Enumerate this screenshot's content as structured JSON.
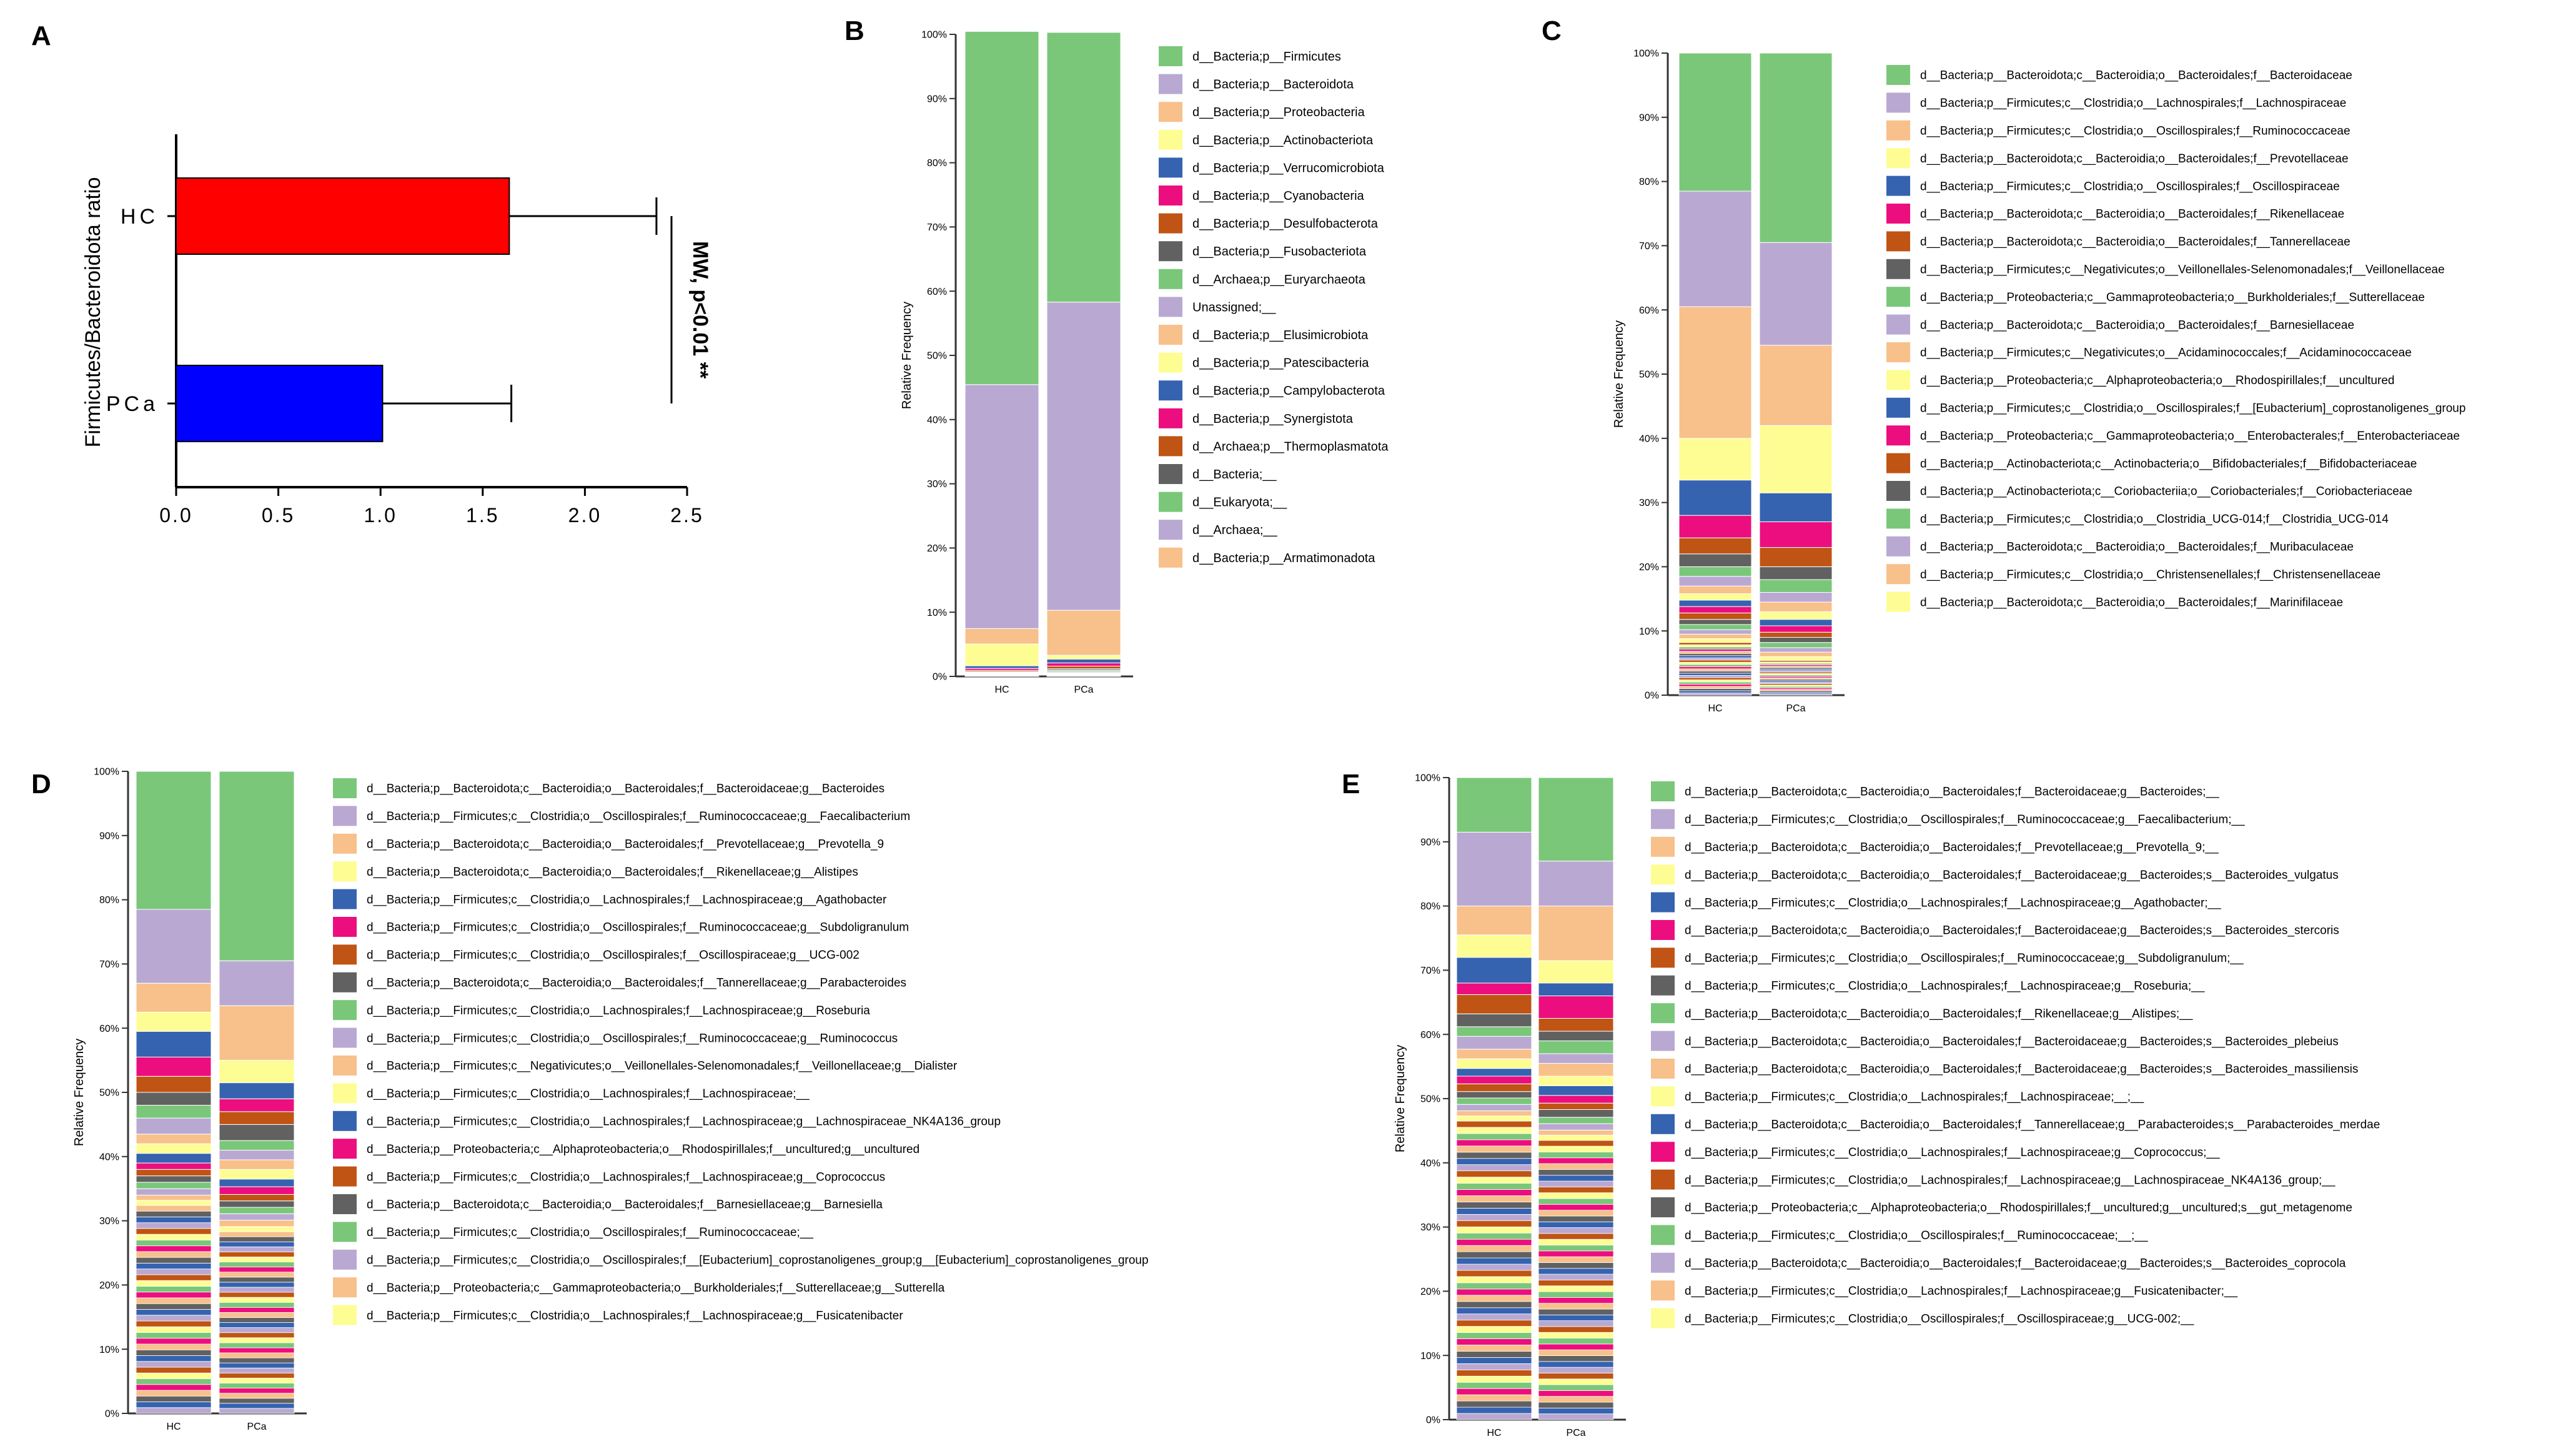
{
  "palette": [
    "#7ac77a",
    "#b9a9d2",
    "#f8c08a",
    "#fdfd94",
    "#3563b0",
    "#ec0e7e",
    "#bf5414",
    "#616161"
  ],
  "chart_data": [
    {
      "panel": "A",
      "type": "bar",
      "orientation": "horizontal",
      "ylabel": "Firmicutes/Bacteroidota ratio",
      "categories": [
        "HC",
        "PCa"
      ],
      "values": [
        1.63,
        1.01
      ],
      "errors": [
        0.72,
        0.63
      ],
      "colors": [
        "#ff0000",
        "#0000ff"
      ],
      "xlim": [
        0,
        2.5
      ],
      "xticks": [
        "0.0",
        "0.5",
        "1.0",
        "1.5",
        "2.0",
        "2.5"
      ],
      "annotation": "MW, p<0.01 **"
    },
    {
      "panel": "B",
      "type": "stacked-bar",
      "ylabel": "Relative Frequency",
      "yticks": [
        "0%",
        "10%",
        "20%",
        "30%",
        "40%",
        "50%",
        "60%",
        "70%",
        "80%",
        "90%",
        "100%"
      ],
      "categories": [
        "HC",
        "PCa"
      ],
      "series": [
        {
          "name": "d__Bacteria;p__Firmicutes",
          "values": [
            55,
            42
          ]
        },
        {
          "name": "d__Bacteria;p__Bacteroidota",
          "values": [
            38,
            48
          ]
        },
        {
          "name": "d__Bacteria;p__Proteobacteria",
          "values": [
            2.4,
            7
          ]
        },
        {
          "name": "d__Bacteria;p__Actinobacteriota",
          "values": [
            3.4,
            0.6
          ]
        },
        {
          "name": "d__Bacteria;p__Verrucomicrobiota",
          "values": [
            0.4,
            0.6
          ]
        },
        {
          "name": "d__Bacteria;p__Cyanobacteria",
          "values": [
            0.3,
            0.5
          ]
        },
        {
          "name": "d__Bacteria;p__Desulfobacterota",
          "values": [
            0.2,
            0.4
          ]
        },
        {
          "name": "d__Bacteria;p__Fusobacteriota",
          "values": [
            0.1,
            0.2
          ]
        },
        {
          "name": "d__Archaea;p__Euryarchaeota",
          "values": [
            0.1,
            0.2
          ]
        },
        {
          "name": "Unassigned;__",
          "values": [
            0.1,
            0.2
          ]
        },
        {
          "name": "d__Bacteria;p__Elusimicrobiota",
          "values": [
            0.05,
            0.1
          ]
        },
        {
          "name": "d__Bacteria;p__Patescibacteria",
          "values": [
            0.05,
            0.1
          ]
        },
        {
          "name": "d__Bacteria;p__Campylobacterota",
          "values": [
            0.05,
            0.1
          ]
        },
        {
          "name": "d__Bacteria;p__Synergistota",
          "values": [
            0.05,
            0.05
          ]
        },
        {
          "name": "d__Archaea;p__Thermoplasmatota",
          "values": [
            0.05,
            0.05
          ]
        },
        {
          "name": "d__Bacteria;__",
          "values": [
            0.05,
            0.05
          ]
        },
        {
          "name": "d__Eukaryota;__",
          "values": [
            0.05,
            0.05
          ]
        },
        {
          "name": "d__Archaea;__",
          "values": [
            0.05,
            0.05
          ]
        },
        {
          "name": "d__Bacteria;p__Armatimonadota",
          "values": [
            0.05,
            0.05
          ]
        }
      ]
    },
    {
      "panel": "C",
      "type": "stacked-bar",
      "ylabel": "Relative Frequency",
      "yticks": [
        "0%",
        "10%",
        "20%",
        "30%",
        "40%",
        "50%",
        "60%",
        "70%",
        "80%",
        "90%",
        "100%"
      ],
      "categories": [
        "HC",
        "PCa"
      ],
      "series": [
        {
          "name": "d__Bacteria;p__Bacteroidota;c__Bacteroidia;o__Bacteroidales;f__Bacteroidaceae",
          "values": [
            21.5,
            29.5
          ]
        },
        {
          "name": "d__Bacteria;p__Firmicutes;c__Clostridia;o__Lachnospirales;f__Lachnospiraceae",
          "values": [
            18,
            16
          ]
        },
        {
          "name": "d__Bacteria;p__Firmicutes;c__Clostridia;o__Oscillospirales;f__Ruminococcaceae",
          "values": [
            20.5,
            12.5
          ]
        },
        {
          "name": "d__Bacteria;p__Bacteroidota;c__Bacteroidia;o__Bacteroidales;f__Prevotellaceae",
          "values": [
            6.5,
            10.5
          ]
        },
        {
          "name": "d__Bacteria;p__Firmicutes;c__Clostridia;o__Oscillospirales;f__Oscillospiraceae",
          "values": [
            5.5,
            4.5
          ]
        },
        {
          "name": "d__Bacteria;p__Bacteroidota;c__Bacteroidia;o__Bacteroidales;f__Rikenellaceae",
          "values": [
            3.5,
            4
          ]
        },
        {
          "name": "d__Bacteria;p__Bacteroidota;c__Bacteroidia;o__Bacteroidales;f__Tannerellaceae",
          "values": [
            2.5,
            3
          ]
        },
        {
          "name": "d__Bacteria;p__Firmicutes;c__Negativicutes;o__Veillonellales-Selenomonadales;f__Veillonellaceae",
          "values": [
            2,
            2
          ]
        },
        {
          "name": "d__Bacteria;p__Proteobacteria;c__Gammaproteobacteria;o__Burkholderiales;f__Sutterellaceae",
          "values": [
            1.5,
            2
          ]
        },
        {
          "name": "d__Bacteria;p__Bacteroidota;c__Bacteroidia;o__Bacteroidales;f__Barnesiellaceae",
          "values": [
            1.5,
            1.5
          ]
        },
        {
          "name": "d__Bacteria;p__Firmicutes;c__Negativicutes;o__Acidaminococcales;f__Acidaminococcaceae",
          "values": [
            1.2,
            1.5
          ]
        },
        {
          "name": "d__Bacteria;p__Proteobacteria;c__Alphaproteobacteria;o__Rhodospirillales;f__uncultured",
          "values": [
            1,
            1.2
          ]
        },
        {
          "name": "d__Bacteria;p__Firmicutes;c__Clostridia;o__Oscillospirales;f__[Eubacterium]_coprostanoligenes_group",
          "values": [
            1,
            1
          ]
        },
        {
          "name": "d__Bacteria;p__Proteobacteria;c__Gammaproteobacteria;o__Enterobacterales;f__Enterobacteriaceae",
          "values": [
            1,
            1
          ]
        },
        {
          "name": "d__Bacteria;p__Actinobacteriota;c__Actinobacteria;o__Bifidobacteriales;f__Bifidobacteriaceae",
          "values": [
            1,
            0.8
          ]
        },
        {
          "name": "d__Bacteria;p__Actinobacteriota;c__Coriobacteriia;o__Coriobacteriales;f__Coriobacteriaceae",
          "values": [
            0.8,
            0.8
          ]
        },
        {
          "name": "d__Bacteria;p__Firmicutes;c__Clostridia;o__Clostridia_UCG-014;f__Clostridia_UCG-014",
          "values": [
            0.8,
            0.8
          ]
        },
        {
          "name": "d__Bacteria;p__Bacteroidota;c__Bacteroidia;o__Bacteroidales;f__Muribaculaceae",
          "values": [
            0.7,
            0.7
          ]
        },
        {
          "name": "d__Bacteria;p__Firmicutes;c__Clostridia;o__Christensenellales;f__Christensenellaceae",
          "values": [
            0.7,
            0.7
          ]
        },
        {
          "name": "d__Bacteria;p__Bacteroidota;c__Bacteroidia;o__Bacteroidales;f__Marinifilaceae",
          "values": [
            0.6,
            0.6
          ]
        }
      ]
    },
    {
      "panel": "D",
      "type": "stacked-bar",
      "ylabel": "Relative Frequency",
      "yticks": [
        "0%",
        "10%",
        "20%",
        "30%",
        "40%",
        "50%",
        "60%",
        "70%",
        "80%",
        "90%",
        "100%"
      ],
      "categories": [
        "HC",
        "PCa"
      ],
      "series": [
        {
          "name": "d__Bacteria;p__Bacteroidota;c__Bacteroidia;o__Bacteroidales;f__Bacteroidaceae;g__Bacteroides",
          "values": [
            21.5,
            29.5
          ]
        },
        {
          "name": "d__Bacteria;p__Firmicutes;c__Clostridia;o__Oscillospirales;f__Ruminococcaceae;g__Faecalibacterium",
          "values": [
            11.5,
            7
          ]
        },
        {
          "name": "d__Bacteria;p__Bacteroidota;c__Bacteroidia;o__Bacteroidales;f__Prevotellaceae;g__Prevotella_9",
          "values": [
            4.5,
            8.5
          ]
        },
        {
          "name": "d__Bacteria;p__Bacteroidota;c__Bacteroidia;o__Bacteroidales;f__Rikenellaceae;g__Alistipes",
          "values": [
            3,
            3.5
          ]
        },
        {
          "name": "d__Bacteria;p__Firmicutes;c__Clostridia;o__Lachnospirales;f__Lachnospiraceae;g__Agathobacter",
          "values": [
            4,
            2.5
          ]
        },
        {
          "name": "d__Bacteria;p__Firmicutes;c__Clostridia;o__Oscillospirales;f__Ruminococcaceae;g__Subdoligranulum",
          "values": [
            3,
            2
          ]
        },
        {
          "name": "d__Bacteria;p__Firmicutes;c__Clostridia;o__Oscillospirales;f__Oscillospiraceae;g__UCG-002",
          "values": [
            2.5,
            2
          ]
        },
        {
          "name": "d__Bacteria;p__Bacteroidota;c__Bacteroidia;o__Bacteroidales;f__Tannerellaceae;g__Parabacteroides",
          "values": [
            2,
            2.5
          ]
        },
        {
          "name": "d__Bacteria;p__Firmicutes;c__Clostridia;o__Lachnospirales;f__Lachnospiraceae;g__Roseburia",
          "values": [
            2,
            1.5
          ]
        },
        {
          "name": "d__Bacteria;p__Firmicutes;c__Clostridia;o__Oscillospirales;f__Ruminococcaceae;g__Ruminococcus",
          "values": [
            2.5,
            1.5
          ]
        },
        {
          "name": "d__Bacteria;p__Firmicutes;c__Negativicutes;o__Veillonellales-Selenomonadales;f__Veillonellaceae;g__Dialister",
          "values": [
            1.5,
            1.5
          ]
        },
        {
          "name": "d__Bacteria;p__Firmicutes;c__Clostridia;o__Lachnospirales;f__Lachnospiraceae;__",
          "values": [
            1.5,
            1.5
          ]
        },
        {
          "name": "d__Bacteria;p__Firmicutes;c__Clostridia;o__Lachnospirales;f__Lachnospiraceae;g__Lachnospiraceae_NK4A136_group",
          "values": [
            1.5,
            1.2
          ]
        },
        {
          "name": "d__Bacteria;p__Proteobacteria;c__Alphaproteobacteria;o__Rhodospirillales;f__uncultured;g__uncultured",
          "values": [
            1,
            1.2
          ]
        },
        {
          "name": "d__Bacteria;p__Firmicutes;c__Clostridia;o__Lachnospirales;f__Lachnospiraceae;g__Coprococcus",
          "values": [
            1,
            1
          ]
        },
        {
          "name": "d__Bacteria;p__Bacteroidota;c__Bacteroidia;o__Bacteroidales;f__Barnesiellaceae;g__Barnesiella",
          "values": [
            1,
            1
          ]
        },
        {
          "name": "d__Bacteria;p__Firmicutes;c__Clostridia;o__Oscillospirales;f__Ruminococcaceae;__",
          "values": [
            1,
            1
          ]
        },
        {
          "name": "d__Bacteria;p__Firmicutes;c__Clostridia;o__Oscillospirales;f__[Eubacterium]_coprostanoligenes_group;g__[Eubacterium]_coprostanoligenes_group",
          "values": [
            1,
            1
          ]
        },
        {
          "name": "d__Bacteria;p__Proteobacteria;c__Gammaproteobacteria;o__Burkholderiales;f__Sutterellaceae;g__Sutterella",
          "values": [
            0.8,
            1
          ]
        },
        {
          "name": "d__Bacteria;p__Firmicutes;c__Clostridia;o__Lachnospirales;f__Lachnospiraceae;g__Fusicatenibacter",
          "values": [
            0.8,
            0.8
          ]
        }
      ]
    },
    {
      "panel": "E",
      "type": "stacked-bar",
      "ylabel": "Relative Frequency",
      "yticks": [
        "0%",
        "10%",
        "20%",
        "30%",
        "40%",
        "50%",
        "60%",
        "70%",
        "80%",
        "90%",
        "100%"
      ],
      "categories": [
        "HC",
        "PCa"
      ],
      "series": [
        {
          "name": "d__Bacteria;p__Bacteroidota;c__Bacteroidia;o__Bacteroidales;f__Bacteroidaceae;g__Bacteroides;__",
          "values": [
            8.5,
            13
          ]
        },
        {
          "name": "d__Bacteria;p__Firmicutes;c__Clostridia;o__Oscillospirales;f__Ruminococcaceae;g__Faecalibacterium;__",
          "values": [
            11.5,
            7
          ]
        },
        {
          "name": "d__Bacteria;p__Bacteroidota;c__Bacteroidia;o__Bacteroidales;f__Prevotellaceae;g__Prevotella_9;__",
          "values": [
            4.5,
            8.5
          ]
        },
        {
          "name": "d__Bacteria;p__Bacteroidota;c__Bacteroidia;o__Bacteroidales;f__Bacteroidaceae;g__Bacteroides;s__Bacteroides_vulgatus",
          "values": [
            3.5,
            3.5
          ]
        },
        {
          "name": "d__Bacteria;p__Firmicutes;c__Clostridia;o__Lachnospirales;f__Lachnospiraceae;g__Agathobacter;__",
          "values": [
            4,
            2
          ]
        },
        {
          "name": "d__Bacteria;p__Bacteroidota;c__Bacteroidia;o__Bacteroidales;f__Bacteroidaceae;g__Bacteroides;s__Bacteroides_stercoris",
          "values": [
            1.8,
            3.5
          ]
        },
        {
          "name": "d__Bacteria;p__Firmicutes;c__Clostridia;o__Oscillospirales;f__Ruminococcaceae;g__Subdoligranulum;__",
          "values": [
            3,
            2
          ]
        },
        {
          "name": "d__Bacteria;p__Firmicutes;c__Clostridia;o__Lachnospirales;f__Lachnospiraceae;g__Roseburia;__",
          "values": [
            2,
            1.5
          ]
        },
        {
          "name": "d__Bacteria;p__Bacteroidota;c__Bacteroidia;o__Bacteroidales;f__Rikenellaceae;g__Alistipes;__",
          "values": [
            1.5,
            2
          ]
        },
        {
          "name": "d__Bacteria;p__Bacteroidota;c__Bacteroidia;o__Bacteroidales;f__Bacteroidaceae;g__Bacteroides;s__Bacteroides_plebeius",
          "values": [
            2,
            1.5
          ]
        },
        {
          "name": "d__Bacteria;p__Bacteroidota;c__Bacteroidia;o__Bacteroidales;f__Bacteroidaceae;g__Bacteroides;s__Bacteroides_massiliensis",
          "values": [
            1.5,
            2
          ]
        },
        {
          "name": "d__Bacteria;p__Firmicutes;c__Clostridia;o__Lachnospirales;f__Lachnospiraceae;__;__",
          "values": [
            1.5,
            1.5
          ]
        },
        {
          "name": "d__Bacteria;p__Bacteroidota;c__Bacteroidia;o__Bacteroidales;f__Tannerellaceae;g__Parabacteroides;s__Parabacteroides_merdae",
          "values": [
            1.2,
            1.5
          ]
        },
        {
          "name": "d__Bacteria;p__Firmicutes;c__Clostridia;o__Lachnospirales;f__Lachnospiraceae;g__Coprococcus;__",
          "values": [
            1.2,
            1.2
          ]
        },
        {
          "name": "d__Bacteria;p__Firmicutes;c__Clostridia;o__Lachnospirales;f__Lachnospiraceae;g__Lachnospiraceae_NK4A136_group;__",
          "values": [
            1.2,
            1
          ]
        },
        {
          "name": "d__Bacteria;p__Proteobacteria;c__Alphaproteobacteria;o__Rhodospirillales;f__uncultured;g__uncultured;s__gut_metagenome",
          "values": [
            1,
            1.2
          ]
        },
        {
          "name": "d__Bacteria;p__Firmicutes;c__Clostridia;o__Oscillospirales;f__Ruminococcaceae;__;__",
          "values": [
            1,
            1
          ]
        },
        {
          "name": "d__Bacteria;p__Bacteroidota;c__Bacteroidia;o__Bacteroidales;f__Bacteroidaceae;g__Bacteroides;s__Bacteroides_coprocola",
          "values": [
            1,
            1
          ]
        },
        {
          "name": "d__Bacteria;p__Firmicutes;c__Clostridia;o__Lachnospirales;f__Lachnospiraceae;g__Fusicatenibacter;__",
          "values": [
            0.8,
            0.8
          ]
        },
        {
          "name": "d__Bacteria;p__Firmicutes;c__Clostridia;o__Oscillospirales;f__Oscillospiraceae;g__UCG-002;__",
          "values": [
            0.8,
            0.8
          ]
        }
      ]
    }
  ]
}
